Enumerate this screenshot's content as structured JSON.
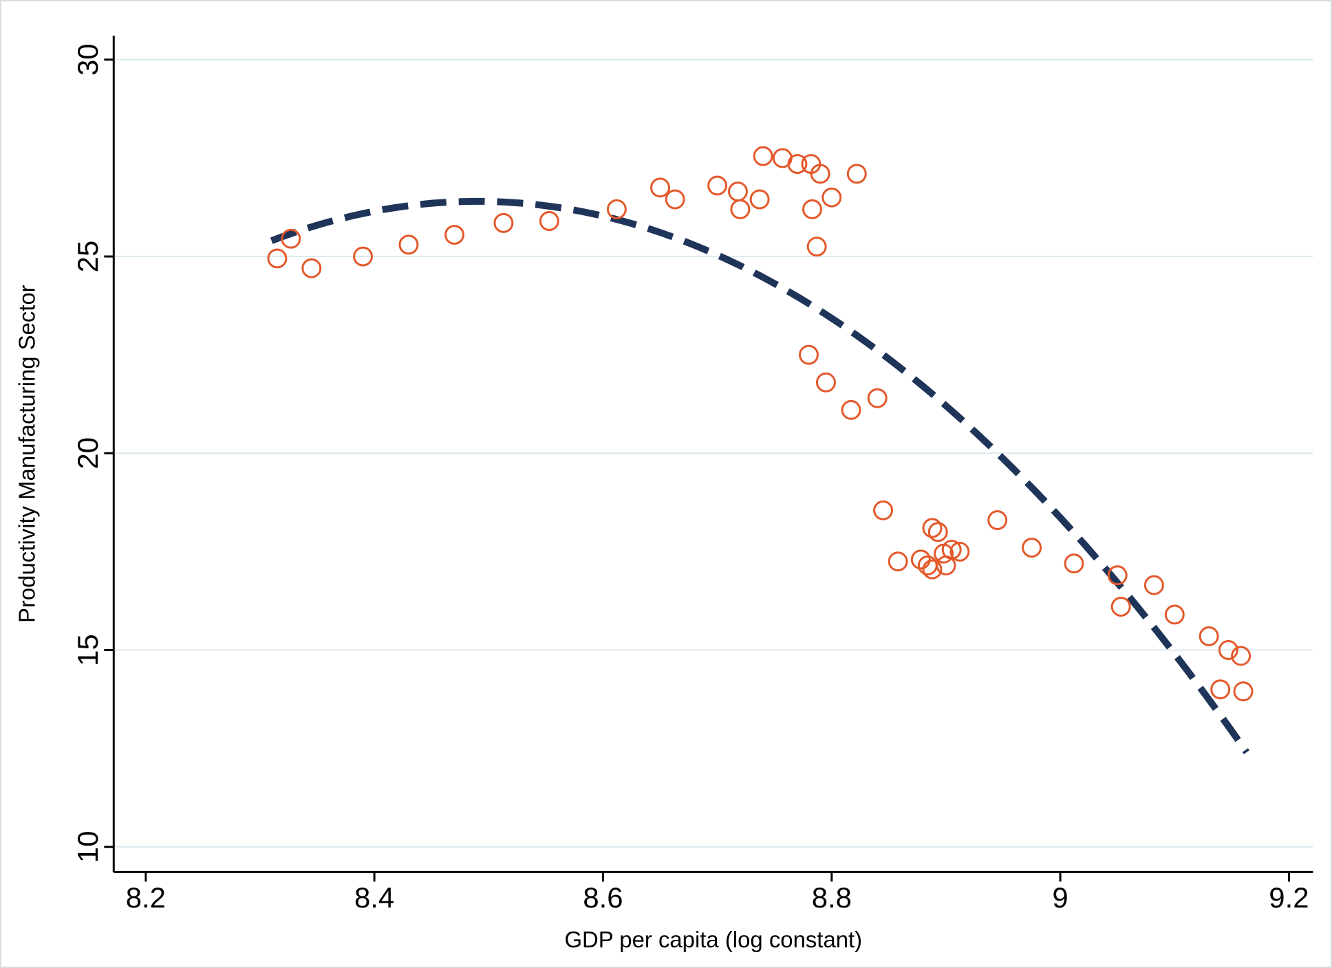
{
  "figure": {
    "background_color": "#ffffff",
    "border_color": "#d8dcdf"
  },
  "chart_data": {
    "type": "scatter",
    "title": "",
    "xlabel": "GDP per capita (log constant)",
    "ylabel": "Productivity Manufacturing Sector",
    "x_ticks": [
      8.2,
      8.4,
      8.6,
      8.8,
      9,
      9.2
    ],
    "x_tick_labels": [
      "8.2",
      "8.4",
      "8.6",
      "8.8",
      "9",
      "9.2"
    ],
    "y_ticks": [
      10,
      15,
      20,
      25,
      30
    ],
    "y_tick_labels": [
      "10",
      "15",
      "20",
      "25",
      "30"
    ],
    "x_domain": [
      8.172,
      9.221
    ],
    "y_domain": [
      9.36,
      30.61
    ],
    "grid": "horizontal",
    "grid_color": "#dce9ef",
    "axis_color": "#000000",
    "marker": {
      "shape": "circle-hollow",
      "color": "#e4582a",
      "radius": 13,
      "stroke_width": 3
    },
    "points": [
      [
        8.315,
        24.95
      ],
      [
        8.327,
        25.45
      ],
      [
        8.345,
        24.7
      ],
      [
        8.39,
        25.0
      ],
      [
        8.43,
        25.3
      ],
      [
        8.47,
        25.55
      ],
      [
        8.513,
        25.85
      ],
      [
        8.553,
        25.9
      ],
      [
        8.612,
        26.2
      ],
      [
        8.65,
        26.75
      ],
      [
        8.663,
        26.45
      ],
      [
        8.7,
        26.8
      ],
      [
        8.718,
        26.65
      ],
      [
        8.72,
        26.2
      ],
      [
        8.737,
        26.45
      ],
      [
        8.74,
        27.55
      ],
      [
        8.757,
        27.5
      ],
      [
        8.77,
        27.35
      ],
      [
        8.782,
        27.35
      ],
      [
        8.79,
        27.1
      ],
      [
        8.8,
        26.5
      ],
      [
        8.783,
        26.2
      ],
      [
        8.787,
        25.25
      ],
      [
        8.822,
        27.1
      ],
      [
        8.78,
        22.5
      ],
      [
        8.795,
        21.8
      ],
      [
        8.817,
        21.1
      ],
      [
        8.84,
        21.4
      ],
      [
        8.845,
        18.55
      ],
      [
        8.858,
        17.25
      ],
      [
        8.878,
        17.3
      ],
      [
        8.884,
        17.15
      ],
      [
        8.888,
        17.05
      ],
      [
        8.888,
        18.1
      ],
      [
        8.893,
        18.0
      ],
      [
        8.898,
        17.45
      ],
      [
        8.9,
        17.15
      ],
      [
        8.905,
        17.55
      ],
      [
        8.912,
        17.5
      ],
      [
        8.945,
        18.3
      ],
      [
        8.975,
        17.6
      ],
      [
        9.012,
        17.2
      ],
      [
        9.05,
        16.9
      ],
      [
        9.053,
        16.1
      ],
      [
        9.082,
        16.65
      ],
      [
        9.1,
        15.9
      ],
      [
        9.13,
        15.35
      ],
      [
        9.14,
        14.0
      ],
      [
        9.147,
        15.0
      ],
      [
        9.158,
        14.85
      ],
      [
        9.16,
        13.95
      ]
    ],
    "fit_line": {
      "style": "dashed",
      "color": "#1f3459",
      "width": 10,
      "dash": [
        38,
        18
      ],
      "model": "quadratic",
      "vertex": [
        8.49,
        26.4
      ],
      "coefficient_a": -30.9,
      "x_start": 8.31,
      "x_end": 9.163
    }
  }
}
